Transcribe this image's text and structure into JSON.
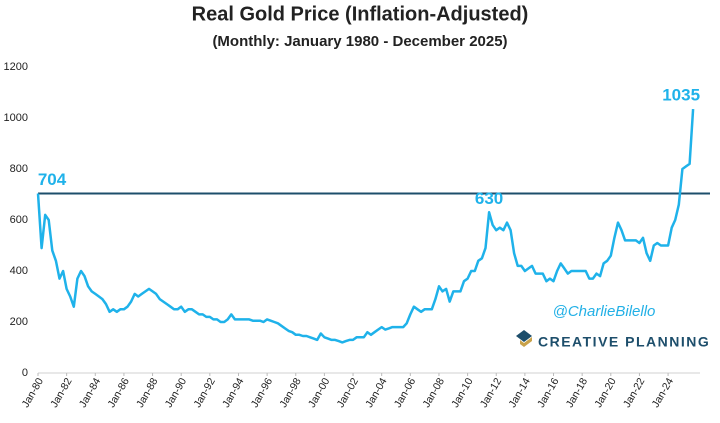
{
  "chart_data": {
    "type": "line",
    "title": "Real Gold Price (Inflation-Adjusted)",
    "subtitle": "(Monthly: January 1980 - December 2025)",
    "categories": [
      "Jan-80",
      null,
      null,
      null,
      null,
      null,
      null,
      null,
      "Jan-82",
      null,
      null,
      null,
      null,
      null,
      null,
      null,
      "Jan-84",
      null,
      null,
      null,
      null,
      null,
      null,
      null,
      "Jan-86",
      null,
      null,
      null,
      null,
      null,
      null,
      null,
      "Jan-88",
      null,
      null,
      null,
      null,
      null,
      null,
      null,
      "Jan-90",
      null,
      null,
      null,
      null,
      null,
      null,
      null,
      "Jan-92",
      null,
      null,
      null,
      null,
      null,
      null,
      null,
      "Jan-94",
      null,
      null,
      null,
      null,
      null,
      null,
      null,
      "Jan-96",
      null,
      null,
      null,
      null,
      null,
      null,
      null,
      "Jan-98",
      null,
      null,
      null,
      null,
      null,
      null,
      null,
      "Jan-00",
      null,
      null,
      null,
      null,
      null,
      null,
      null,
      "Jan-02",
      null,
      null,
      null,
      null,
      null,
      null,
      null,
      "Jan-04",
      null,
      null,
      null,
      null,
      null,
      null,
      null,
      "Jan-06",
      null,
      null,
      null,
      null,
      null,
      null,
      null,
      "Jan-08",
      null,
      null,
      null,
      null,
      null,
      null,
      null,
      "Jan-10",
      null,
      null,
      null,
      null,
      null,
      null,
      null,
      "Jan-12",
      null,
      null,
      null,
      null,
      null,
      null,
      null,
      "Jan-14",
      null,
      null,
      null,
      null,
      null,
      null,
      null,
      "Jan-16",
      null,
      null,
      null,
      null,
      null,
      null,
      null,
      "Jan-18",
      null,
      null,
      null,
      null,
      null,
      null,
      null,
      "Jan-20",
      null,
      null,
      null,
      null,
      null,
      null,
      null,
      "Jan-22",
      null,
      null,
      null,
      null,
      null,
      null,
      null,
      "Jan-24",
      null,
      null,
      null,
      null,
      null,
      null,
      null
    ],
    "series": [
      {
        "color": "#1fb2ea",
        "values": [
          704,
          490,
          620,
          600,
          480,
          440,
          370,
          400,
          330,
          300,
          260,
          370,
          400,
          380,
          340,
          320,
          310,
          300,
          290,
          270,
          240,
          250,
          240,
          250,
          250,
          260,
          280,
          310,
          300,
          310,
          320,
          330,
          320,
          310,
          290,
          280,
          270,
          260,
          250,
          250,
          260,
          240,
          250,
          250,
          240,
          230,
          230,
          220,
          220,
          210,
          210,
          200,
          200,
          210,
          230,
          210,
          210,
          210,
          210,
          210,
          205,
          205,
          205,
          200,
          210,
          205,
          200,
          195,
          185,
          175,
          165,
          160,
          150,
          150,
          145,
          145,
          140,
          135,
          130,
          155,
          140,
          135,
          130,
          130,
          125,
          120,
          125,
          130,
          130,
          140,
          140,
          140,
          160,
          150,
          160,
          170,
          180,
          170,
          175,
          180,
          180,
          180,
          180,
          195,
          230,
          260,
          250,
          240,
          250,
          250,
          250,
          290,
          340,
          320,
          330,
          280,
          320,
          320,
          320,
          360,
          370,
          400,
          400,
          440,
          450,
          490,
          630,
          580,
          560,
          570,
          560,
          590,
          560,
          470,
          420,
          420,
          400,
          410,
          420,
          390,
          390,
          390,
          360,
          370,
          360,
          400,
          430,
          410,
          390,
          400,
          400,
          400,
          400,
          400,
          370,
          370,
          390,
          380,
          430,
          440,
          460,
          530,
          590,
          560,
          520,
          520,
          520,
          520,
          510,
          530,
          470,
          440,
          500,
          510,
          500,
          500,
          500,
          570,
          600,
          660,
          800,
          810,
          820,
          1035
        ]
      }
    ],
    "ylim": [
      0,
      1200
    ],
    "yticks": [
      0,
      200,
      400,
      600,
      800,
      1000,
      1200
    ],
    "hline": 704,
    "hline_color": "#1d4e6b",
    "annotations": [
      704,
      630,
      1035
    ],
    "watermark": "@CharlieBilello",
    "brand": "CREATIVE PLANNING"
  }
}
